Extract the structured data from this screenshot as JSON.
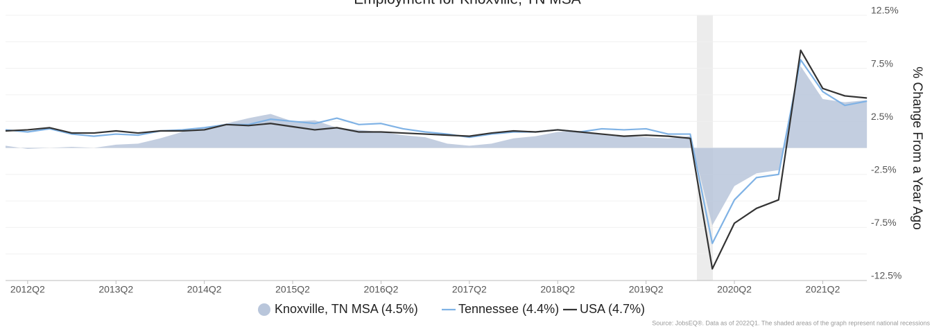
{
  "chart_data": {
    "type": "line",
    "title": "Employment for Knoxville, TN MSA",
    "y_label": "% Change From a Year Ago",
    "source": "Source: JobsEQ®. Data as of 2022Q1. The shaded areas of the graph represent national recessions",
    "categories": [
      null,
      "2012Q2",
      null,
      null,
      null,
      "2013Q2",
      null,
      null,
      null,
      "2014Q2",
      null,
      null,
      null,
      "2015Q2",
      null,
      null,
      null,
      "2016Q2",
      null,
      null,
      null,
      "2017Q2",
      null,
      null,
      null,
      "2018Q2",
      null,
      null,
      null,
      "2019Q2",
      null,
      null,
      null,
      "2020Q2",
      null,
      null,
      null,
      "2021Q2",
      null,
      null
    ],
    "ylim": [
      -12.5,
      12.5
    ],
    "yticks": [
      {
        "value": 12.5,
        "label": "12.5%"
      },
      {
        "value": 7.5,
        "label": "7.5%"
      },
      {
        "value": 2.5,
        "label": "2.5%"
      },
      {
        "value": -2.5,
        "label": "-2.5%"
      },
      {
        "value": -7.5,
        "label": "-7.5%"
      },
      {
        "value": -12.5,
        "label": "-12.5%"
      }
    ],
    "ygrid_minor": [
      10,
      5,
      0,
      -5,
      -10
    ],
    "grid": true,
    "legend": "bottom",
    "series": [
      {
        "name": "Knoxville, TN MSA (4.5%)",
        "style": "area",
        "color": "#b9c6db",
        "values": [
          0.2,
          -0.1,
          0.0,
          0.1,
          0.0,
          0.3,
          0.4,
          0.9,
          1.5,
          1.9,
          2.3,
          2.8,
          3.2,
          2.5,
          2.6,
          1.9,
          1.7,
          1.5,
          1.2,
          1.0,
          0.4,
          0.2,
          0.4,
          0.9,
          1.1,
          1.5,
          1.6,
          1.3,
          1.1,
          1.0,
          0.9,
          1.1,
          -7.3,
          -3.6,
          -2.4,
          -2.1,
          7.7,
          4.6,
          4.3,
          4.5
        ]
      },
      {
        "name": "Tennessee (4.4%)",
        "style": "line",
        "color": "#7fb2e5",
        "values": [
          1.7,
          1.5,
          1.8,
          1.3,
          1.1,
          1.3,
          1.2,
          1.6,
          1.7,
          1.9,
          2.2,
          2.2,
          2.7,
          2.5,
          2.3,
          2.8,
          2.2,
          2.3,
          1.8,
          1.5,
          1.3,
          1.0,
          1.3,
          1.5,
          1.5,
          1.7,
          1.5,
          1.8,
          1.7,
          1.8,
          1.3,
          1.3,
          -9.0,
          -4.9,
          -2.8,
          -2.5,
          8.3,
          5.3,
          4.0,
          4.4
        ]
      },
      {
        "name": "USA (4.7%)",
        "style": "line",
        "color": "#333333",
        "values": [
          1.6,
          1.7,
          1.9,
          1.4,
          1.4,
          1.6,
          1.4,
          1.6,
          1.6,
          1.7,
          2.2,
          2.1,
          2.3,
          2.0,
          1.7,
          1.9,
          1.5,
          1.5,
          1.4,
          1.3,
          1.2,
          1.1,
          1.4,
          1.6,
          1.5,
          1.7,
          1.5,
          1.3,
          1.1,
          1.2,
          1.1,
          0.9,
          -11.4,
          -7.1,
          -5.7,
          -4.9,
          9.2,
          5.6,
          4.9,
          4.7
        ]
      }
    ]
  }
}
